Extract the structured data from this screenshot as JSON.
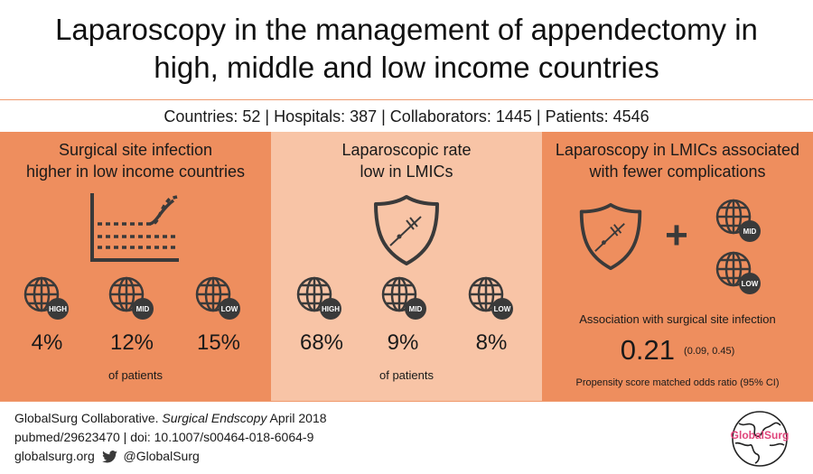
{
  "title_line1": "Laparoscopy in the management of appendectomy in",
  "title_line2": "high, middle and low income countries",
  "stats": "Countries: 52 | Hospitals: 387 | Collaborators: 1445 | Patients: 4546",
  "panel1": {
    "title_line1": "Surgical site infection",
    "title_line2": "higher in low income countries",
    "icon": "line-chart-icon",
    "groups": [
      {
        "badge": "HIGH",
        "value": "4%"
      },
      {
        "badge": "MID",
        "value": "12%"
      },
      {
        "badge": "LOW",
        "value": "15%"
      }
    ],
    "note": "of patients"
  },
  "panel2": {
    "title_line1": "Laparoscopic rate",
    "title_line2": "low in LMICs",
    "icon": "laparoscopy-shield-icon",
    "groups": [
      {
        "badge": "HIGH",
        "value": "68%"
      },
      {
        "badge": "MID",
        "value": "9%"
      },
      {
        "badge": "LOW",
        "value": "8%"
      }
    ],
    "note": "of patients"
  },
  "panel3": {
    "title_line1": "Laparoscopy in LMICs associated",
    "title_line2": "with fewer complications",
    "plus": "+",
    "badges": [
      "MID",
      "LOW"
    ],
    "assoc_label": "Association with surgical site infection",
    "or_value": "0.21",
    "or_ci": "(0.09, 0.45)",
    "or_note": "Propensity score matched odds ratio (95% CI)"
  },
  "footer": {
    "line1_prefix": "GlobalSurg Collaborative.",
    "line1_journal": "Surgical Endscopy",
    "line1_suffix": "April 2018",
    "line2": "pubmed/29623470 | doi: 10.1007/s00464-018-6064-9",
    "line3_site": "globalsurg.org",
    "line3_handle": "@GlobalSurg",
    "logo_text": "GlobalSurg"
  },
  "colors": {
    "panel_dark": "#ee8e5e",
    "panel_light": "#f8c4a6",
    "icon": "#3a3a3a",
    "logo": "#e0457b"
  }
}
